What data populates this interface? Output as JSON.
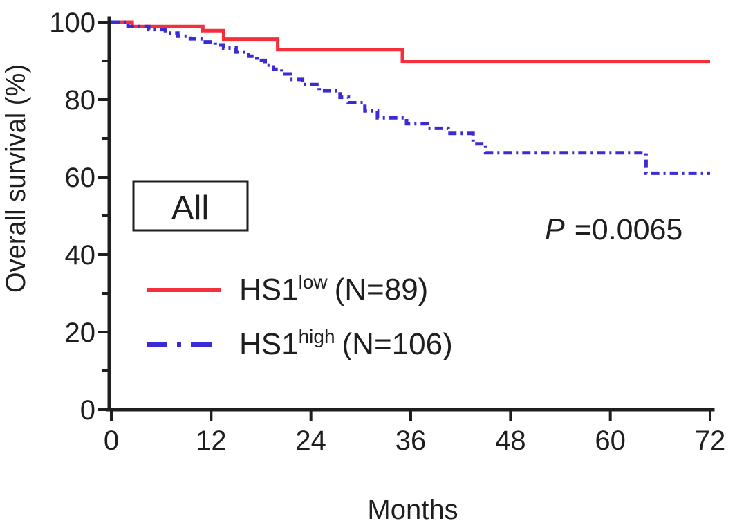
{
  "figure": {
    "box_label": "All",
    "p_label": "P",
    "p_value": "=0.0065",
    "legend": [
      {
        "base": "HS1",
        "sup": "low",
        "rest": "(N=89)",
        "color": "#f5303d",
        "line": "solid"
      },
      {
        "base": "HS1",
        "sup": "high",
        "rest": "(N=106)",
        "color": "#3b2bd5",
        "line": "dash-dot"
      }
    ]
  },
  "chart_data": {
    "type": "line",
    "subtype": "kaplan_meier_step",
    "title": "All",
    "xlabel": "Months",
    "ylabel": "Overall survival (%)",
    "xlim": [
      0,
      72
    ],
    "ylim": [
      0,
      100
    ],
    "x_ticks": [
      0,
      12,
      24,
      36,
      48,
      60,
      72
    ],
    "y_ticks_major": [
      0,
      20,
      40,
      60,
      80,
      100
    ],
    "y_ticks_minor": [
      10,
      30,
      50,
      70,
      90
    ],
    "grid": false,
    "legend_position": "inside lower-left",
    "annotation_p_value": "P =0.0065",
    "axis_color": "#1e1e1e",
    "series": [
      {
        "name": "HS1low (N=89)",
        "n": 89,
        "color": "#f5303d",
        "line": "solid",
        "steps_month_percent": [
          [
            0,
            100
          ],
          [
            2.5,
            98.9
          ],
          [
            11,
            97.8
          ],
          [
            13.5,
            95.6
          ],
          [
            20,
            92.9
          ],
          [
            35,
            89.9
          ],
          [
            72,
            89.9
          ]
        ]
      },
      {
        "name": "HS1high (N=106)",
        "n": 106,
        "color": "#3b2bd5",
        "line": "dash-dot",
        "steps_month_percent": [
          [
            0,
            100
          ],
          [
            2,
            98.9
          ],
          [
            4.5,
            98.1
          ],
          [
            6.5,
            97.2
          ],
          [
            8,
            96.4
          ],
          [
            9.5,
            95.7
          ],
          [
            11,
            94.9
          ],
          [
            12.5,
            94.1
          ],
          [
            13.5,
            93.3
          ],
          [
            15,
            92.3
          ],
          [
            16.5,
            91.2
          ],
          [
            17.5,
            90.1
          ],
          [
            18.5,
            88.9
          ],
          [
            19.5,
            87.8
          ],
          [
            20.5,
            86.6
          ],
          [
            21.5,
            85.2
          ],
          [
            23,
            83.9
          ],
          [
            25,
            82.3
          ],
          [
            27.5,
            80.6
          ],
          [
            28.5,
            79.2
          ],
          [
            30.5,
            77.1
          ],
          [
            32,
            75.3
          ],
          [
            35.5,
            73.8
          ],
          [
            38,
            72.6
          ],
          [
            40.5,
            71.3
          ],
          [
            43.5,
            68.6
          ],
          [
            45,
            66.3
          ],
          [
            64.3,
            61.0
          ],
          [
            72,
            61.0
          ]
        ]
      }
    ]
  }
}
